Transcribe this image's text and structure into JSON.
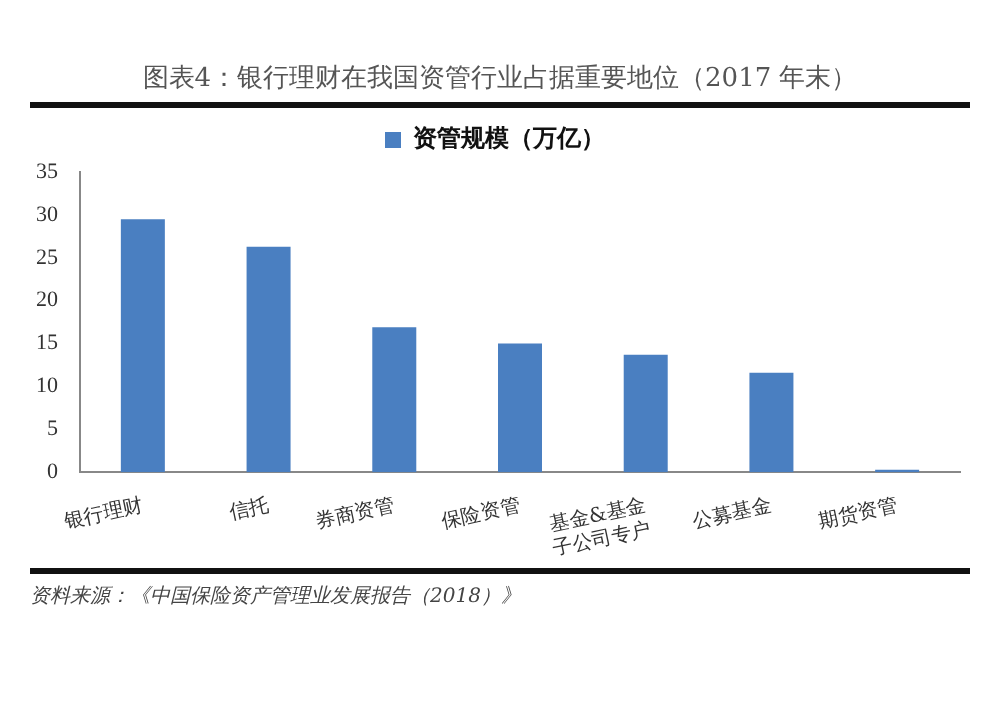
{
  "chart_data": {
    "type": "bar",
    "title": "图表4：银行理财在我国资管行业占据重要地位（2017 年末）",
    "categories": [
      "银行理财",
      "信托",
      "券商资管",
      "保险资管",
      "基金&基金子公司专户",
      "公募基金",
      "期货资管"
    ],
    "series": [
      {
        "name": "资管规模（万亿）",
        "color": "#4a7fc1",
        "values": [
          29.5,
          26.3,
          16.9,
          15.0,
          13.7,
          11.6,
          0.3
        ]
      }
    ],
    "ylim": [
      0,
      35
    ],
    "yticks": [
      0,
      5,
      10,
      15,
      20,
      25,
      30,
      35
    ],
    "grid": false,
    "legend": "top",
    "annotations": [
      "资料来源：《中国保险资产管理业发展报告（2018）》"
    ]
  }
}
